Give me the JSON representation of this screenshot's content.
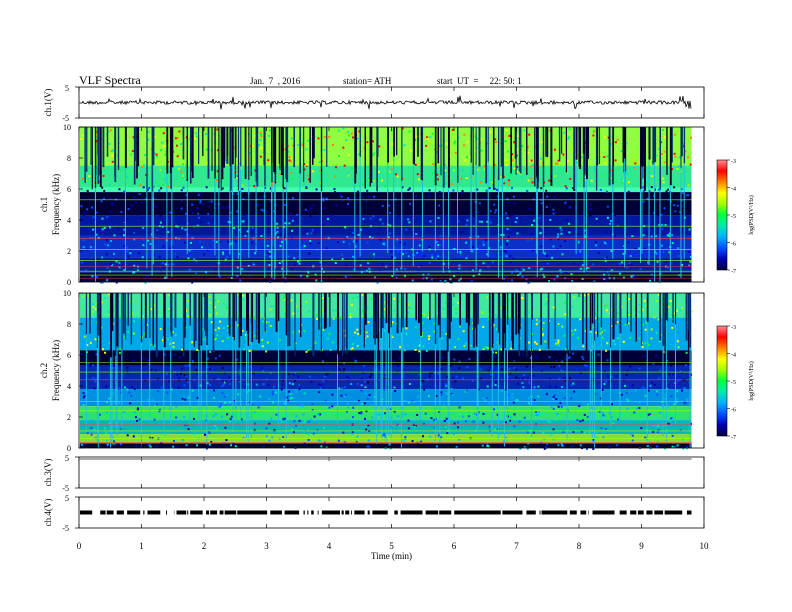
{
  "header": {
    "title": "VLF  Spectra",
    "date": "Jan.  7  , 2016",
    "station": "station= ATH",
    "start": "start  UT  =     22: 50: 1"
  },
  "chart_data": {
    "type": "heatmap",
    "x": {
      "label": "Time  (min)",
      "range": [
        0,
        10
      ],
      "ticks": [
        "0",
        "1",
        "2",
        "3",
        "4",
        "5",
        "6",
        "7",
        "8",
        "9",
        "10"
      ]
    },
    "data_end_min": 9.8,
    "panels": [
      {
        "id": "ch1-waveform",
        "type": "line",
        "ylabel": "ch.1(V)",
        "ylim": [
          -5,
          5
        ],
        "ticks": [
          "5",
          "-5"
        ],
        "baseline": 0,
        "color": "#000000"
      },
      {
        "id": "ch1-spectrogram",
        "type": "heatmap",
        "ylabel": [
          "ch.1",
          "Frequency  (kHz)"
        ],
        "ylim_khz": [
          0,
          10
        ],
        "ticks": [
          "0",
          "2",
          "4",
          "6",
          "8",
          "10"
        ],
        "colorbar": {
          "label": "log(PSD(V²/Hz)",
          "range": [
            -7,
            -3
          ],
          "ticks": [
            "-3",
            "-4",
            "-5",
            "-6",
            "-7"
          ]
        }
      },
      {
        "id": "ch2-spectrogram",
        "type": "heatmap",
        "ylabel": [
          "ch.2",
          "Frequency  (kHz)"
        ],
        "ylim_khz": [
          0,
          10
        ],
        "ticks": [
          "0",
          "2",
          "4",
          "6",
          "8",
          "10"
        ],
        "colorbar": {
          "label": "log(PSD(V²/Hz)",
          "range": [
            -7,
            -3
          ],
          "ticks": [
            "-3",
            "-4",
            "-5",
            "-6",
            "-7"
          ]
        }
      },
      {
        "id": "ch3-waveform",
        "type": "line",
        "ylabel": "ch.3(V)",
        "ylim": [
          -5,
          5
        ],
        "ticks": [
          "5",
          "-5"
        ],
        "baseline": 5,
        "color": "#000000"
      },
      {
        "id": "ch4-waveform",
        "type": "line",
        "ylabel": "ch.4(V)",
        "ylim": [
          -5,
          5
        ],
        "ticks": [
          "5",
          "-5"
        ],
        "baseline": 0,
        "color": "#000000"
      }
    ],
    "colormap": [
      "#000040",
      "#0000b0",
      "#0050ff",
      "#00b0ff",
      "#00e8b0",
      "#00ff40",
      "#a0ff00",
      "#ffff00",
      "#ff8000",
      "#ff0000",
      "#ff9090"
    ],
    "grid": false,
    "legend": "none"
  }
}
